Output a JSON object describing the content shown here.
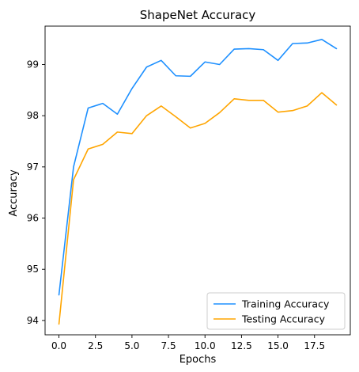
{
  "chart_data": {
    "type": "line",
    "title": "ShapeNet Accuracy",
    "xlabel": "Epochs",
    "ylabel": "Accuracy",
    "xlim": [
      -0.95,
      19.95
    ],
    "ylim": [
      93.72,
      99.75
    ],
    "xticks": [
      0.0,
      2.5,
      5.0,
      7.5,
      10.0,
      12.5,
      15.0,
      17.5
    ],
    "xtick_labels": [
      "0.0",
      "2.5",
      "5.0",
      "7.5",
      "10.0",
      "12.5",
      "15.0",
      "17.5"
    ],
    "yticks": [
      94,
      95,
      96,
      97,
      98,
      99
    ],
    "ytick_labels": [
      "94",
      "95",
      "96",
      "97",
      "98",
      "99"
    ],
    "grid": false,
    "legend_position": "lower-right",
    "x": [
      0,
      1,
      2,
      3,
      4,
      5,
      6,
      7,
      8,
      9,
      10,
      11,
      12,
      13,
      14,
      15,
      16,
      17,
      18,
      19
    ],
    "series": [
      {
        "name": "Training Accuracy",
        "color": "#1e90ff",
        "values": [
          94.5,
          97.0,
          98.15,
          98.24,
          98.03,
          98.53,
          98.95,
          99.08,
          98.78,
          98.77,
          99.05,
          99.0,
          99.3,
          99.31,
          99.29,
          99.08,
          99.41,
          99.42,
          99.49,
          99.31
        ]
      },
      {
        "name": "Testing Accuracy",
        "color": "#ffa500",
        "values": [
          93.93,
          96.75,
          97.35,
          97.44,
          97.68,
          97.65,
          98.0,
          98.19,
          97.98,
          97.76,
          97.85,
          98.06,
          98.33,
          98.3,
          98.3,
          98.07,
          98.1,
          98.19,
          98.45,
          98.21
        ]
      }
    ]
  }
}
